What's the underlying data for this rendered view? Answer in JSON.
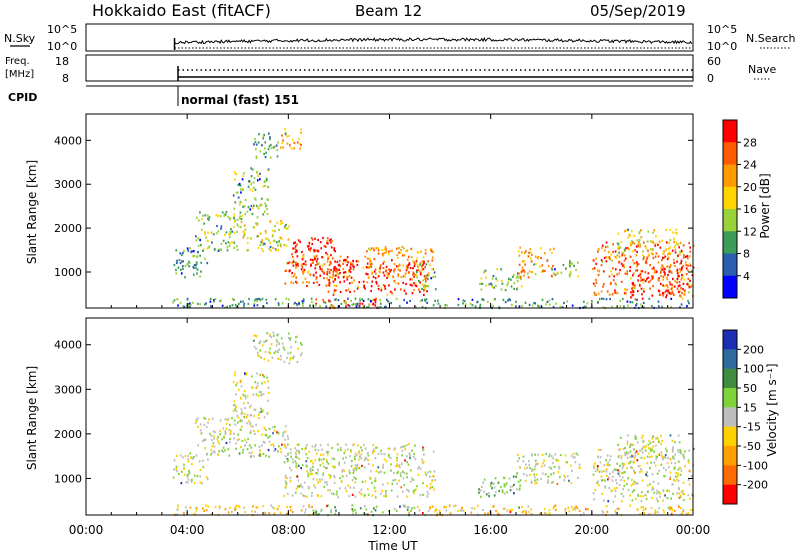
{
  "header": {
    "title": "Hokkaido East (fitACF)",
    "beam": "Beam 12",
    "date": "05/Sep/2019"
  },
  "top_panels": {
    "nsky": {
      "label": "N.Sky",
      "ticks": [
        "10^5",
        "10^0"
      ],
      "right_ticks": [
        "10^5",
        "10^0"
      ],
      "right_label": "N.Search"
    },
    "freq": {
      "label_line1": "Freq.",
      "label_line2": "[MHz]",
      "ticks": [
        "18",
        "8"
      ],
      "right_ticks": [
        "60",
        "0"
      ],
      "right_label": "Nave"
    },
    "cpid": {
      "label": "CPID",
      "text": "normal (fast) 151"
    }
  },
  "chart_data": [
    {
      "type": "heatmap",
      "name": "power",
      "ylabel": "Slant Range [km]",
      "yticks": [
        1000,
        2000,
        3000,
        4000
      ],
      "ylim": [
        180,
        4600
      ],
      "xlim": [
        0,
        24
      ],
      "colorbar_label": "Power [dB]",
      "colorbar_ticks": [
        "28",
        "24",
        "20",
        "16",
        "12",
        "8",
        "4"
      ],
      "colorbar_colors": [
        "#ff0000",
        "#ff5a00",
        "#ff9a00",
        "#ffd400",
        "#9ad23a",
        "#3c9c5a",
        "#2a5fb0",
        "#0000ff"
      ],
      "regions": [
        {
          "t0": 3.4,
          "t1": 4.8,
          "r0": 900,
          "r1": 1600,
          "level": 5
        },
        {
          "t0": 4.3,
          "t1": 6.0,
          "r0": 1500,
          "r1": 2400,
          "level": 4
        },
        {
          "t0": 5.8,
          "t1": 7.2,
          "r0": 2200,
          "r1": 3400,
          "level": 4
        },
        {
          "t0": 6.6,
          "t1": 7.6,
          "r0": 3600,
          "r1": 4200,
          "level": 5
        },
        {
          "t0": 7.6,
          "t1": 8.5,
          "r0": 3800,
          "r1": 4300,
          "level": 2
        },
        {
          "t0": 6.0,
          "t1": 8.0,
          "r0": 1500,
          "r1": 2200,
          "level": 3
        },
        {
          "t0": 7.8,
          "t1": 10.5,
          "r0": 700,
          "r1": 1400,
          "level": 1
        },
        {
          "t0": 8.0,
          "t1": 10.0,
          "r0": 1000,
          "r1": 1800,
          "level": 0
        },
        {
          "t0": 9.5,
          "t1": 13.5,
          "r0": 500,
          "r1": 1300,
          "level": 0
        },
        {
          "t0": 11.0,
          "t1": 13.8,
          "r0": 900,
          "r1": 1600,
          "level": 2
        },
        {
          "t0": 13.0,
          "t1": 13.8,
          "r0": 600,
          "r1": 1200,
          "level": 4
        },
        {
          "t0": 15.5,
          "t1": 17.2,
          "r0": 600,
          "r1": 1100,
          "level": 4
        },
        {
          "t0": 17.0,
          "t1": 18.5,
          "r0": 900,
          "r1": 1600,
          "level": 2
        },
        {
          "t0": 18.5,
          "t1": 19.5,
          "r0": 900,
          "r1": 1300,
          "level": 4
        },
        {
          "t0": 20.0,
          "t1": 24.0,
          "r0": 500,
          "r1": 1700,
          "level": 1
        },
        {
          "t0": 21.5,
          "t1": 24.0,
          "r0": 400,
          "r1": 1100,
          "level": 0
        },
        {
          "t0": 21.0,
          "t1": 23.5,
          "r0": 1400,
          "r1": 2000,
          "level": 3
        },
        {
          "t0": 9.0,
          "t1": 11.5,
          "r0": 200,
          "r1": 420,
          "level": 0
        },
        {
          "t0": 3.4,
          "t1": 24.0,
          "r0": 200,
          "r1": 420,
          "level": 5
        }
      ]
    },
    {
      "type": "heatmap",
      "name": "velocity",
      "ylabel": "Slant Range [km]",
      "xlabel": "Time UT",
      "xticks": [
        "00:00",
        "04:00",
        "08:00",
        "12:00",
        "16:00",
        "20:00",
        "00:00"
      ],
      "yticks": [
        1000,
        2000,
        3000,
        4000
      ],
      "ylim": [
        180,
        4600
      ],
      "xlim": [
        0,
        24
      ],
      "colorbar_label": "Velocity [m s⁻¹]",
      "colorbar_ticks": [
        "200",
        "100",
        "50",
        "15",
        "-15",
        "-50",
        "-100",
        "-200"
      ],
      "colorbar_colors": [
        "#1e2eb4",
        "#2e6a9e",
        "#3f8c3f",
        "#7fd33a",
        "#bebebe",
        "#ffd000",
        "#ffa000",
        "#ff6a00",
        "#ff0000"
      ],
      "regions": [
        {
          "t0": 3.4,
          "t1": 4.8,
          "r0": 900,
          "r1": 1600,
          "level": 4
        },
        {
          "t0": 4.3,
          "t1": 6.0,
          "r0": 1500,
          "r1": 2400,
          "level": 4
        },
        {
          "t0": 5.8,
          "t1": 7.2,
          "r0": 2200,
          "r1": 3400,
          "level": 4
        },
        {
          "t0": 6.6,
          "t1": 8.5,
          "r0": 3600,
          "r1": 4300,
          "level": 4
        },
        {
          "t0": 6.0,
          "t1": 8.0,
          "r0": 1500,
          "r1": 2200,
          "level": 4
        },
        {
          "t0": 7.8,
          "t1": 13.8,
          "r0": 600,
          "r1": 1800,
          "level": 4
        },
        {
          "t0": 15.5,
          "t1": 17.2,
          "r0": 600,
          "r1": 1100,
          "level": 3
        },
        {
          "t0": 17.0,
          "t1": 19.5,
          "r0": 900,
          "r1": 1600,
          "level": 4
        },
        {
          "t0": 20.0,
          "t1": 24.0,
          "r0": 500,
          "r1": 1700,
          "level": 4
        },
        {
          "t0": 21.0,
          "t1": 23.5,
          "r0": 1400,
          "r1": 2000,
          "level": 4
        },
        {
          "t0": 9.0,
          "t1": 13.0,
          "r0": 200,
          "r1": 420,
          "level": 3
        },
        {
          "t0": 13.0,
          "t1": 24.0,
          "r0": 200,
          "r1": 420,
          "level": 5
        },
        {
          "t0": 3.4,
          "t1": 9.0,
          "r0": 200,
          "r1": 420,
          "level": 5
        }
      ]
    }
  ]
}
